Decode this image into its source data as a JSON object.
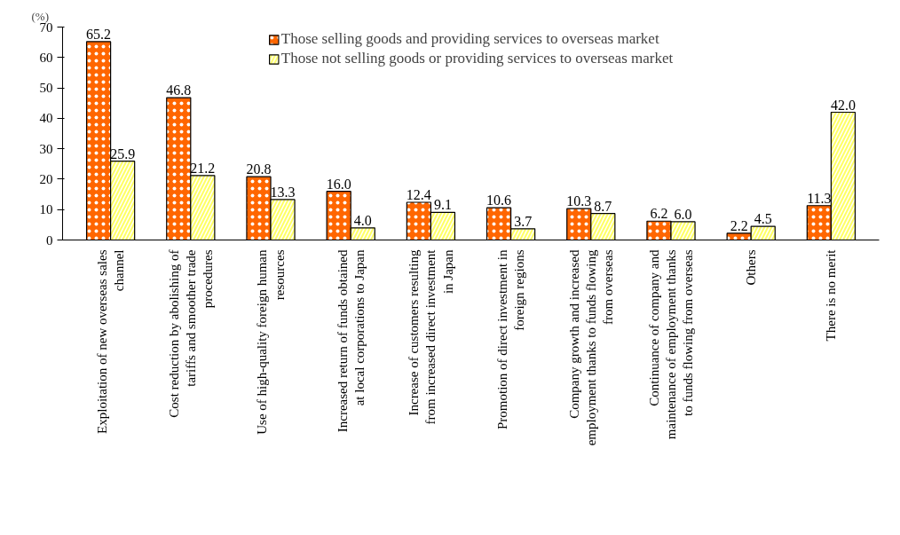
{
  "chart_data": {
    "type": "bar",
    "ylabel": "(%)",
    "categories": [
      "Exploitation of new overseas sales channel",
      "Cost reduction by abolishing of tariffs and smoother trade procedures",
      "Use of high-quality foreign human resources",
      "Increased return of funds obtained at local corporations to Japan",
      "Increase of customers resulting from increased direct investment in Japan",
      "Promotion of direct investment in foreign regions",
      "Company growth and increased employment thanks to funds flowing from overseas",
      "Continuance of company and maintenance of employment thanks to funds flowing from overseas",
      "Others",
      "There is no merit"
    ],
    "series": [
      {
        "name": "Those selling goods and providing services to overseas market",
        "color": "#ff6600",
        "values": [
          65.2,
          46.8,
          20.8,
          16.0,
          12.4,
          10.6,
          10.3,
          6.2,
          2.2,
          11.3
        ],
        "value_labels": [
          "65.2",
          "46.8",
          "20.8",
          "16.0",
          "12.4",
          "10.6",
          "10.3",
          "6.2",
          "2.2",
          "11.3"
        ]
      },
      {
        "name": "Those not selling goods or providing services to overseas market",
        "color": "#ffff66",
        "values": [
          25.9,
          21.2,
          13.3,
          4.0,
          9.1,
          3.7,
          8.7,
          6.0,
          4.5,
          42.0
        ],
        "value_labels": [
          "25.9",
          "21.2",
          "13.3",
          "4.0",
          "9.1",
          "3.7",
          "8.7",
          "6.0",
          "4.5",
          "42.0"
        ]
      }
    ],
    "ylim": [
      0,
      70
    ],
    "yticks": [
      0,
      10,
      20,
      30,
      40,
      50,
      60,
      70
    ],
    "grid": false,
    "legend": "top"
  }
}
